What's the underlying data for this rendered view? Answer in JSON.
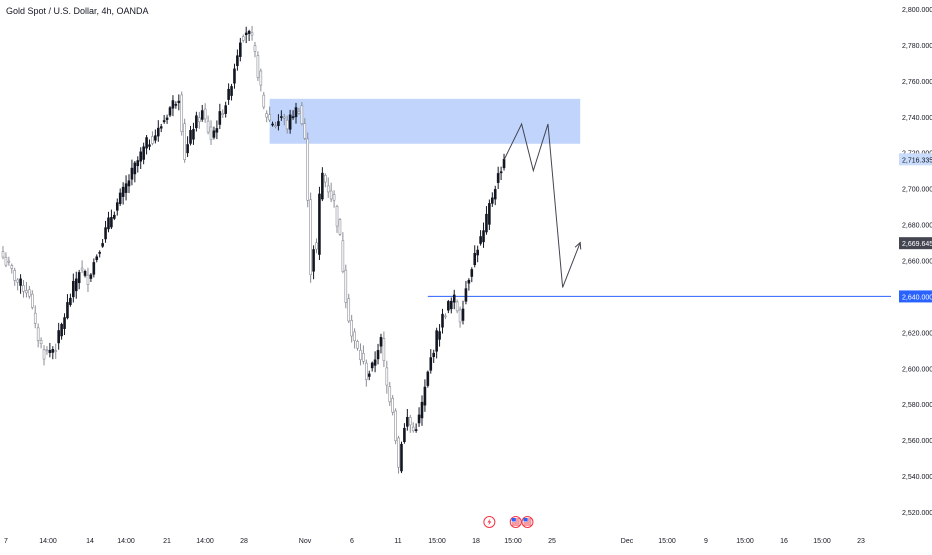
{
  "header": {
    "title": "Gold Spot / U.S. Dollar, 4h, OANDA"
  },
  "chart_data": {
    "type": "candlestick",
    "title": "Gold Spot / U.S. Dollar, 4h, OANDA",
    "ylim": [
      2515,
      2805
    ],
    "y_ticks": [
      2800,
      2780,
      2760,
      2740,
      2720,
      2700,
      2680,
      2660,
      2640,
      2620,
      2600,
      2580,
      2560,
      2540,
      2520
    ],
    "x_labels": [
      "7",
      "14:00",
      "14",
      "14:00",
      "21",
      "14:00",
      "28",
      "Nov",
      "6",
      "11",
      "15:00",
      "18",
      "15:00",
      "25",
      "Dec",
      "15:00",
      "9",
      "15:00",
      "16",
      "15:00",
      "23"
    ],
    "price_labels": [
      {
        "text": "2,716.335",
        "value": 2716.335,
        "color": "#c9dcfb",
        "text_color": "#131722"
      },
      {
        "text": "2,669.645",
        "value": 2669.645,
        "color": "#434651",
        "text_color": "#ffffff"
      },
      {
        "text": "2,640.000",
        "value": 2640.0,
        "color": "#2962ff",
        "text_color": "#ffffff"
      }
    ],
    "anchors": [
      [
        0,
        2662
      ],
      [
        5,
        2648
      ],
      [
        9,
        2642
      ],
      [
        11,
        2622
      ],
      [
        14,
        2608
      ],
      [
        18,
        2612
      ],
      [
        22,
        2635
      ],
      [
        26,
        2655
      ],
      [
        29,
        2650
      ],
      [
        33,
        2668
      ],
      [
        37,
        2685
      ],
      [
        41,
        2698
      ],
      [
        45,
        2712
      ],
      [
        49,
        2725
      ],
      [
        53,
        2732
      ],
      [
        57,
        2745
      ],
      [
        60,
        2752
      ],
      [
        62,
        2718
      ],
      [
        65,
        2735
      ],
      [
        68,
        2742
      ],
      [
        71,
        2728
      ],
      [
        74,
        2740
      ],
      [
        77,
        2752
      ],
      [
        79,
        2768
      ],
      [
        81,
        2784
      ],
      [
        83,
        2788
      ],
      [
        85,
        2782
      ],
      [
        87,
        2765
      ],
      [
        89,
        2744
      ],
      [
        91,
        2738
      ],
      [
        93,
        2736
      ],
      [
        95,
        2740
      ],
      [
        97,
        2735
      ],
      [
        99,
        2742
      ],
      [
        101,
        2745
      ],
      [
        103,
        2728
      ],
      [
        105,
        2655
      ],
      [
        106,
        2668
      ],
      [
        107,
        2665
      ],
      [
        108,
        2695
      ],
      [
        109,
        2708
      ],
      [
        111,
        2700
      ],
      [
        113,
        2692
      ],
      [
        115,
        2672
      ],
      [
        117,
        2640
      ],
      [
        119,
        2618
      ],
      [
        121,
        2610
      ],
      [
        123,
        2602
      ],
      [
        124,
        2596
      ],
      [
        126,
        2600
      ],
      [
        128,
        2612
      ],
      [
        129,
        2615
      ],
      [
        131,
        2590
      ],
      [
        133,
        2578
      ],
      [
        134,
        2562
      ],
      [
        135,
        2545
      ],
      [
        136,
        2560
      ],
      [
        138,
        2572
      ],
      [
        140,
        2565
      ],
      [
        142,
        2572
      ],
      [
        144,
        2588
      ],
      [
        146,
        2605
      ],
      [
        148,
        2618
      ],
      [
        150,
        2628
      ],
      [
        152,
        2635
      ],
      [
        154,
        2638
      ],
      [
        156,
        2628
      ],
      [
        158,
        2645
      ],
      [
        160,
        2658
      ],
      [
        162,
        2668
      ],
      [
        164,
        2675
      ],
      [
        166,
        2690
      ],
      [
        168,
        2702
      ],
      [
        170,
        2712
      ],
      [
        171,
        2716.335
      ]
    ],
    "supply_zone": {
      "x_from": 91,
      "x_to": 197,
      "y_low": 2725,
      "y_high": 2750,
      "color": "#a8c3fb"
    },
    "support_line": {
      "value": 2640.0,
      "x_from": 145,
      "color": "#2962ff"
    },
    "projection_path": [
      [
        171,
        2716
      ],
      [
        177,
        2736
      ],
      [
        181,
        2710
      ],
      [
        186,
        2736
      ],
      [
        191,
        2645
      ],
      [
        197,
        2670
      ]
    ],
    "event_icons": [
      {
        "name": "lightning-icon",
        "x": 166
      },
      {
        "name": "us-flag-icon",
        "x": 175
      },
      {
        "name": "us-flag-icon",
        "x": 179
      }
    ]
  }
}
